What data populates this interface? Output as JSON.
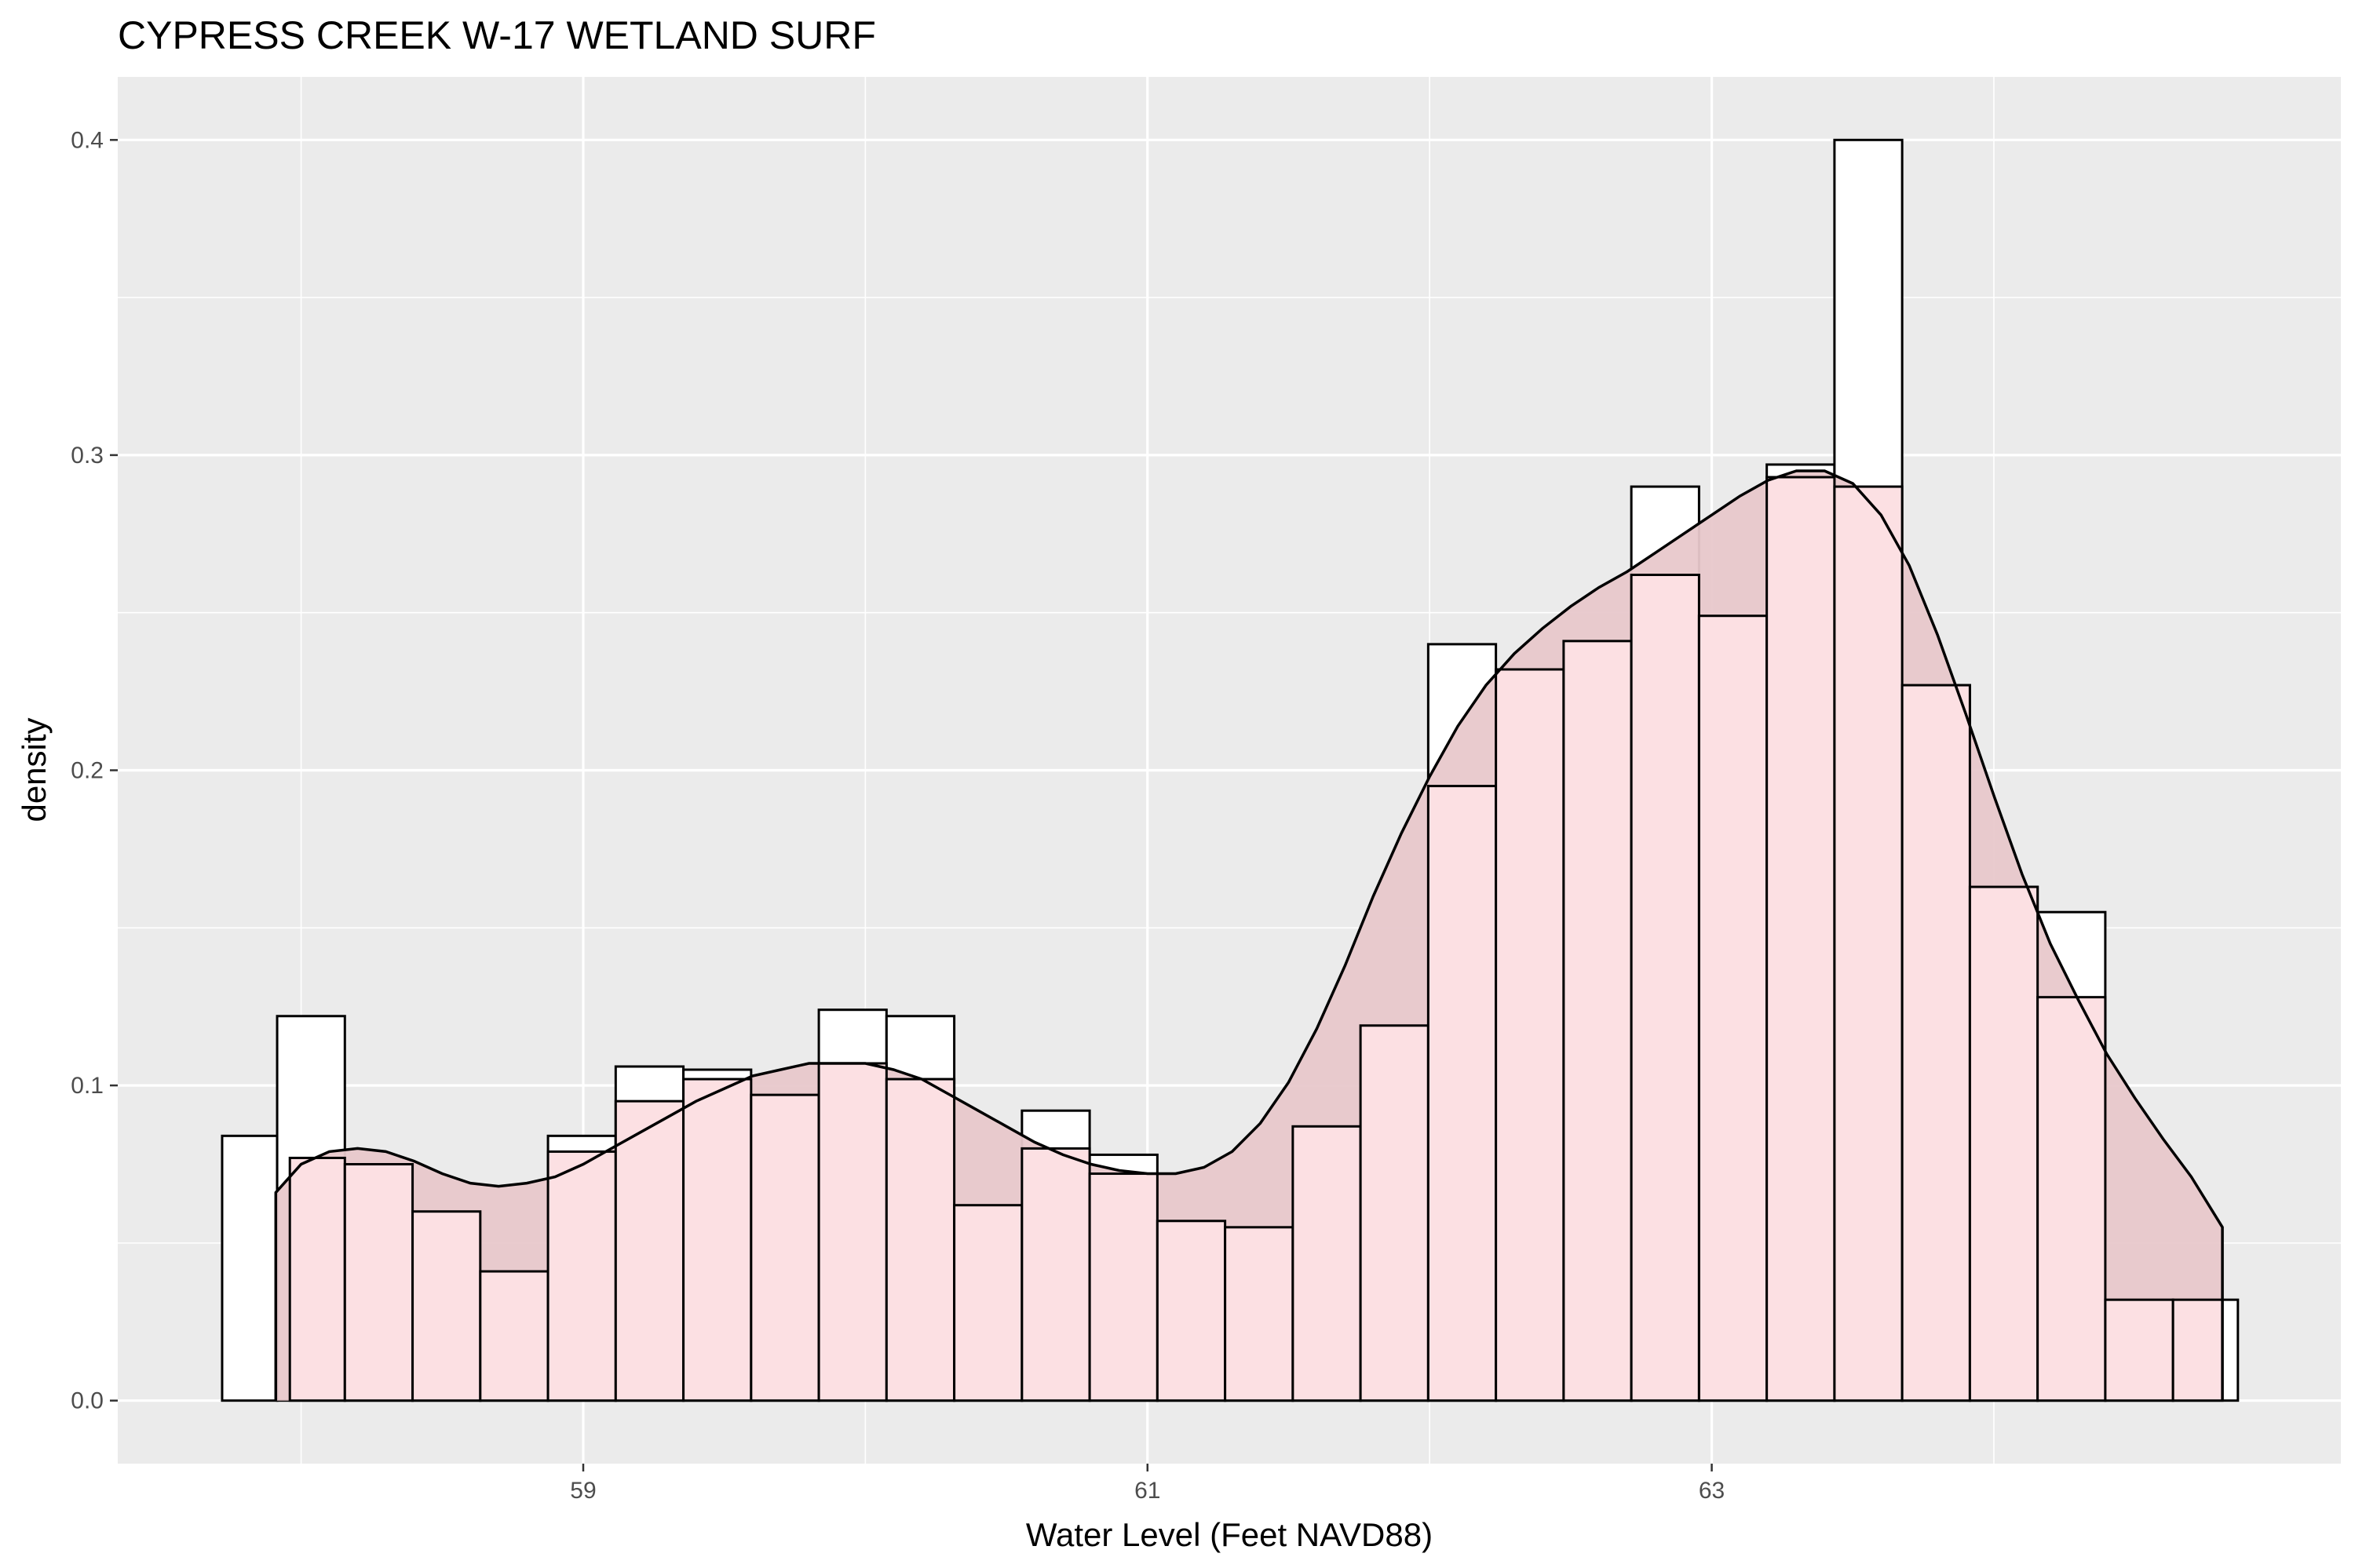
{
  "chart_data": {
    "type": "bar",
    "title": "CYPRESS CREEK W-17 WETLAND SURF",
    "xlabel": "Water Level (Feet NAVD88)",
    "ylabel": "density",
    "xlim": [
      57.35,
      65.23
    ],
    "ylim": [
      -0.02,
      0.42
    ],
    "xticks": [
      59,
      61,
      63
    ],
    "xtick_labels": [
      "59",
      "61",
      "63"
    ],
    "yticks": [
      0.0,
      0.1,
      0.2,
      0.3,
      0.4
    ],
    "ytick_labels": [
      "0.0",
      "0.1",
      "0.2",
      "0.3",
      "0.4"
    ],
    "grid": true,
    "legend": "none",
    "series": [
      {
        "role": "histogram-a",
        "fill": "#ffffff",
        "stroke": "#000000",
        "bins": [
          {
            "x0": 57.72,
            "x1": 57.915,
            "density": 0.084
          },
          {
            "x0": 57.915,
            "x1": 58.155,
            "density": 0.122
          },
          {
            "x0": 58.155,
            "x1": 58.395,
            "density": 0.075
          },
          {
            "x0": 58.395,
            "x1": 58.635,
            "density": 0.06
          },
          {
            "x0": 58.635,
            "x1": 58.875,
            "density": 0.041
          },
          {
            "x0": 58.875,
            "x1": 59.115,
            "density": 0.084
          },
          {
            "x0": 59.115,
            "x1": 59.355,
            "density": 0.106
          },
          {
            "x0": 59.355,
            "x1": 59.595,
            "density": 0.105
          },
          {
            "x0": 59.595,
            "x1": 59.835,
            "density": 0.097
          },
          {
            "x0": 59.835,
            "x1": 60.075,
            "density": 0.124
          },
          {
            "x0": 60.075,
            "x1": 60.315,
            "density": 0.122
          },
          {
            "x0": 60.315,
            "x1": 60.555,
            "density": 0.062
          },
          {
            "x0": 60.555,
            "x1": 60.795,
            "density": 0.092
          },
          {
            "x0": 60.795,
            "x1": 61.035,
            "density": 0.078
          },
          {
            "x0": 61.035,
            "x1": 61.275,
            "density": 0.057
          },
          {
            "x0": 61.275,
            "x1": 61.515,
            "density": 0.055
          },
          {
            "x0": 61.515,
            "x1": 61.755,
            "density": 0.087
          },
          {
            "x0": 61.755,
            "x1": 61.995,
            "density": 0.119
          },
          {
            "x0": 61.995,
            "x1": 62.235,
            "density": 0.24
          },
          {
            "x0": 62.235,
            "x1": 62.475,
            "density": 0.232
          },
          {
            "x0": 62.475,
            "x1": 62.715,
            "density": 0.241
          },
          {
            "x0": 62.715,
            "x1": 62.955,
            "density": 0.29
          },
          {
            "x0": 62.955,
            "x1": 63.195,
            "density": 0.249
          },
          {
            "x0": 63.195,
            "x1": 63.435,
            "density": 0.297
          },
          {
            "x0": 63.435,
            "x1": 63.675,
            "density": 0.4
          },
          {
            "x0": 63.675,
            "x1": 63.915,
            "density": 0.227
          },
          {
            "x0": 63.915,
            "x1": 64.155,
            "density": 0.163
          },
          {
            "x0": 64.155,
            "x1": 64.395,
            "density": 0.155
          },
          {
            "x0": 64.395,
            "x1": 64.635,
            "density": 0.032
          },
          {
            "x0": 64.635,
            "x1": 64.865,
            "density": 0.032
          }
        ]
      },
      {
        "role": "histogram-b",
        "fill": "#fce0e3",
        "stroke": "#000000",
        "bins": [
          {
            "x0": 57.96,
            "x1": 58.155,
            "density": 0.077
          },
          {
            "x0": 58.155,
            "x1": 58.395,
            "density": 0.075
          },
          {
            "x0": 58.395,
            "x1": 58.635,
            "density": 0.06
          },
          {
            "x0": 58.635,
            "x1": 58.875,
            "density": 0.041
          },
          {
            "x0": 58.875,
            "x1": 59.115,
            "density": 0.079
          },
          {
            "x0": 59.115,
            "x1": 59.355,
            "density": 0.095
          },
          {
            "x0": 59.355,
            "x1": 59.595,
            "density": 0.102
          },
          {
            "x0": 59.595,
            "x1": 59.835,
            "density": 0.097
          },
          {
            "x0": 59.835,
            "x1": 60.075,
            "density": 0.107
          },
          {
            "x0": 60.075,
            "x1": 60.315,
            "density": 0.102
          },
          {
            "x0": 60.315,
            "x1": 60.555,
            "density": 0.062
          },
          {
            "x0": 60.555,
            "x1": 60.795,
            "density": 0.08
          },
          {
            "x0": 60.795,
            "x1": 61.035,
            "density": 0.072
          },
          {
            "x0": 61.035,
            "x1": 61.275,
            "density": 0.057
          },
          {
            "x0": 61.275,
            "x1": 61.515,
            "density": 0.055
          },
          {
            "x0": 61.515,
            "x1": 61.755,
            "density": 0.087
          },
          {
            "x0": 61.755,
            "x1": 61.995,
            "density": 0.119
          },
          {
            "x0": 61.995,
            "x1": 62.235,
            "density": 0.195
          },
          {
            "x0": 62.235,
            "x1": 62.475,
            "density": 0.232
          },
          {
            "x0": 62.475,
            "x1": 62.715,
            "density": 0.241
          },
          {
            "x0": 62.715,
            "x1": 62.955,
            "density": 0.262
          },
          {
            "x0": 62.955,
            "x1": 63.195,
            "density": 0.249
          },
          {
            "x0": 63.195,
            "x1": 63.435,
            "density": 0.293
          },
          {
            "x0": 63.435,
            "x1": 63.675,
            "density": 0.29
          },
          {
            "x0": 63.675,
            "x1": 63.915,
            "density": 0.227
          },
          {
            "x0": 63.915,
            "x1": 64.155,
            "density": 0.163
          },
          {
            "x0": 64.155,
            "x1": 64.395,
            "density": 0.128
          },
          {
            "x0": 64.395,
            "x1": 64.635,
            "density": 0.032
          },
          {
            "x0": 64.635,
            "x1": 64.81,
            "density": 0.032
          }
        ]
      },
      {
        "role": "density-curve",
        "type": "area",
        "fill": "#e8c8cb",
        "stroke": "#000000",
        "x": [
          57.91,
          58.0,
          58.1,
          58.2,
          58.3,
          58.4,
          58.5,
          58.6,
          58.7,
          58.8,
          58.9,
          59.0,
          59.1,
          59.2,
          59.3,
          59.4,
          59.5,
          59.6,
          59.7,
          59.8,
          59.9,
          60.0,
          60.1,
          60.2,
          60.3,
          60.4,
          60.5,
          60.6,
          60.7,
          60.8,
          60.9,
          61.0,
          61.1,
          61.2,
          61.3,
          61.4,
          61.5,
          61.6,
          61.7,
          61.8,
          61.9,
          62.0,
          62.1,
          62.2,
          62.3,
          62.4,
          62.5,
          62.6,
          62.7,
          62.8,
          62.9,
          63.0,
          63.1,
          63.2,
          63.3,
          63.4,
          63.5,
          63.6,
          63.7,
          63.8,
          63.9,
          64.0,
          64.1,
          64.2,
          64.3,
          64.4,
          64.5,
          64.6,
          64.7,
          64.81
        ],
        "y": [
          0.066,
          0.075,
          0.079,
          0.08,
          0.079,
          0.076,
          0.072,
          0.069,
          0.068,
          0.069,
          0.071,
          0.075,
          0.08,
          0.085,
          0.09,
          0.095,
          0.099,
          0.103,
          0.105,
          0.107,
          0.107,
          0.107,
          0.105,
          0.102,
          0.097,
          0.092,
          0.087,
          0.082,
          0.078,
          0.075,
          0.073,
          0.072,
          0.072,
          0.074,
          0.079,
          0.088,
          0.101,
          0.118,
          0.138,
          0.16,
          0.18,
          0.198,
          0.214,
          0.227,
          0.237,
          0.245,
          0.252,
          0.258,
          0.263,
          0.269,
          0.275,
          0.281,
          0.287,
          0.292,
          0.295,
          0.295,
          0.291,
          0.281,
          0.265,
          0.243,
          0.218,
          0.192,
          0.167,
          0.145,
          0.127,
          0.11,
          0.096,
          0.083,
          0.071,
          0.055
        ]
      }
    ]
  }
}
